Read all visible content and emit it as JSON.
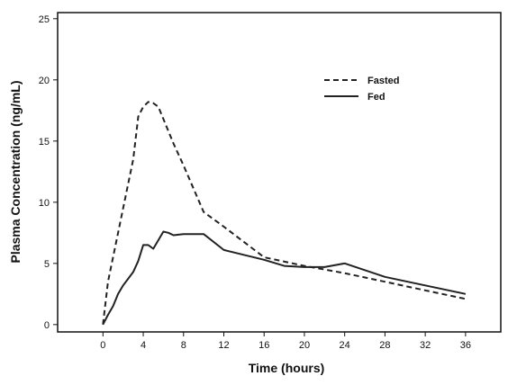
{
  "chart_data": {
    "type": "line",
    "title": "",
    "xlabel": "Time (hours)",
    "ylabel": "Plasma Concentration (ng/mL)",
    "xlim": [
      -4.5,
      39.5
    ],
    "ylim": [
      -0.6,
      25.5
    ],
    "xticks": [
      0,
      4,
      8,
      12,
      16,
      20,
      24,
      28,
      32,
      36
    ],
    "yticks": [
      0,
      5,
      10,
      15,
      20,
      25
    ],
    "grid": false,
    "legend": "top-right",
    "series": [
      {
        "name": "Fasted",
        "style": "dashed",
        "color": "#222222",
        "x": [
          0,
          0.5,
          1,
          2,
          3,
          3.5,
          4,
          4.5,
          5,
          5.5,
          6,
          7,
          8,
          10,
          12,
          16,
          20,
          22,
          24,
          28,
          32,
          36
        ],
        "y": [
          0,
          3.5,
          5.5,
          9.5,
          13.5,
          17,
          17.8,
          18.2,
          18.1,
          17.8,
          16.8,
          14.8,
          13,
          9.2,
          8,
          5.5,
          4.8,
          4.5,
          4.2,
          3.5,
          2.8,
          2.1
        ]
      },
      {
        "name": "Fed",
        "style": "solid",
        "color": "#222222",
        "x": [
          0,
          0.5,
          1,
          1.5,
          2,
          3,
          3.5,
          4,
          4.5,
          5,
          6,
          6.5,
          7,
          8,
          10,
          12,
          16,
          18,
          20,
          22,
          24,
          28,
          32,
          36
        ],
        "y": [
          0,
          0.8,
          1.5,
          2.5,
          3.2,
          4.3,
          5.2,
          6.5,
          6.5,
          6.2,
          7.6,
          7.5,
          7.3,
          7.4,
          7.4,
          6.1,
          5.3,
          4.8,
          4.7,
          4.7,
          5.0,
          3.9,
          3.2,
          2.5
        ]
      }
    ]
  }
}
